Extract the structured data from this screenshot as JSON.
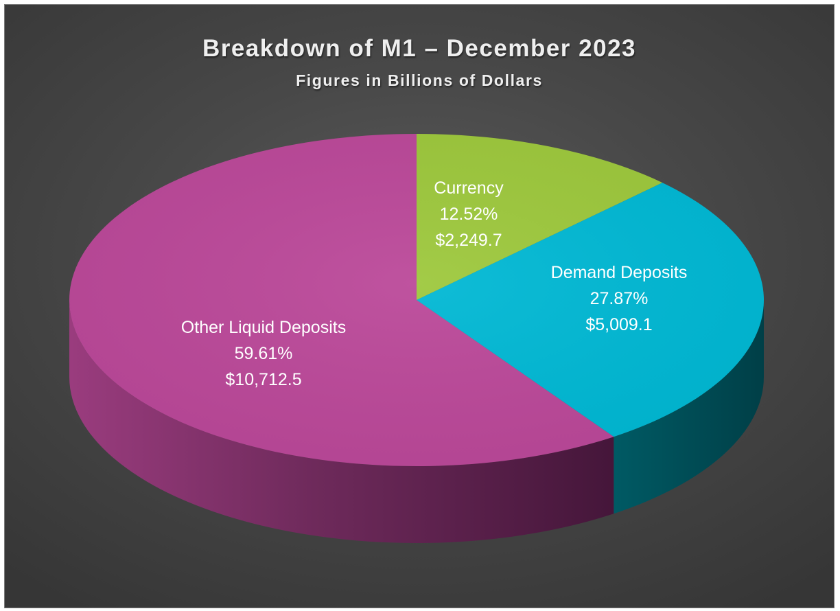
{
  "chart_data": {
    "type": "pie",
    "title": "Breakdown of M1 – December 2023",
    "subtitle": "Figures in Billions of Dollars",
    "categories": [
      "Currency",
      "Demand Deposits",
      "Other Liquid Deposits"
    ],
    "values": [
      2249.7,
      5009.1,
      10712.5
    ],
    "percent_labels": [
      "12.52%",
      "27.87%",
      "59.61%"
    ],
    "value_labels": [
      "$2,249.7",
      "$5,009.1",
      "$10,712.5"
    ],
    "colors": [
      "#9dc83c",
      "#00b8d4",
      "#bb4899"
    ],
    "style": "3d",
    "legend": "none"
  }
}
